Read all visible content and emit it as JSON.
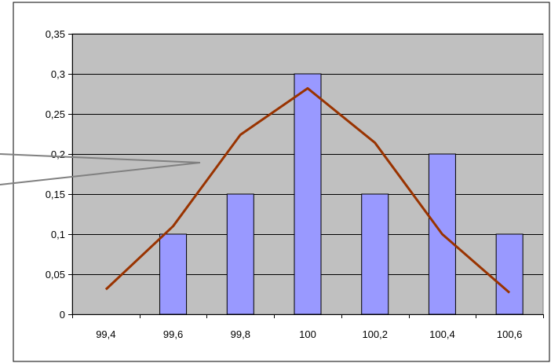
{
  "chart_data": {
    "type": "bar",
    "title": "",
    "xlabel": "",
    "ylabel": "",
    "categories": [
      "99,4",
      "99,6",
      "99,8",
      "100",
      "100,2",
      "100,4",
      "100,6"
    ],
    "y_ticks": [
      "0",
      "0,05",
      "0,1",
      "0,15",
      "0,2",
      "0,25",
      "0,3",
      "0,35"
    ],
    "ylim": [
      0,
      0.35
    ],
    "grid": true,
    "legend": "none",
    "series": [
      {
        "type": "bar",
        "values": [
          0,
          0.1,
          0.15,
          0.3,
          0.15,
          0.2,
          0.1
        ]
      },
      {
        "type": "line",
        "values": [
          0.031,
          0.11,
          0.224,
          0.282,
          0.214,
          0.1,
          0.027
        ]
      }
    ],
    "colors": {
      "plot_background": "#c0c0c0",
      "bar_fill": "#9999ff",
      "bar_stroke": "#000000",
      "line": "#993300",
      "grid": "#000000",
      "callout": "#808080"
    }
  }
}
